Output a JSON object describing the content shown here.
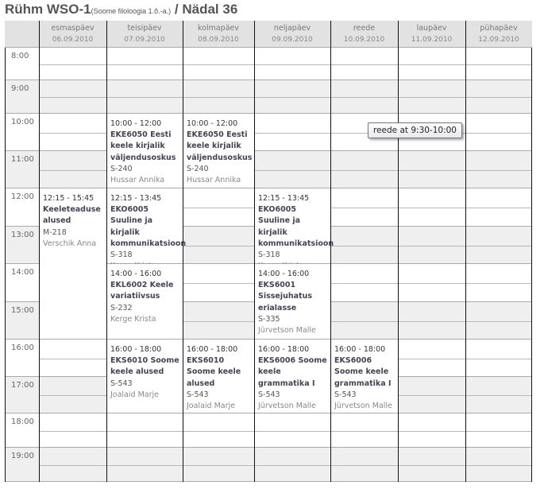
{
  "title": {
    "main": "Rühm WSO-1",
    "sub": "(Soome filoloogia 1.õ.-a.)",
    "week": " / Nädal 36"
  },
  "days": [
    {
      "name": "esmaspäev",
      "date": "06.09.2010"
    },
    {
      "name": "teisipäev",
      "date": "07.09.2010"
    },
    {
      "name": "kolmapäev",
      "date": "08.09.2010"
    },
    {
      "name": "neljapäev",
      "date": "09.09.2010"
    },
    {
      "name": "reede",
      "date": "10.09.2010"
    },
    {
      "name": "laupäev",
      "date": "11.09.2010"
    },
    {
      "name": "pühapäev",
      "date": "12.09.2010"
    }
  ],
  "hours": [
    "8:00",
    "9:00",
    "10:00",
    "11:00",
    "12:00",
    "13:00",
    "14:00",
    "15:00",
    "16:00",
    "17:00",
    "18:00",
    "19:00"
  ],
  "events": [
    {
      "day": 1,
      "time": "10:00 - 12:00",
      "course": "EKE6050 Eesti keele kirjalik väljendusoskus",
      "room": "S-240",
      "lecturer": "Hussar Annika"
    },
    {
      "day": 2,
      "time": "10:00 - 12:00",
      "course": "EKE6050 Eesti keele kirjalik väljendusoskus",
      "room": "S-240",
      "lecturer": "Hussar Annika"
    },
    {
      "day": 0,
      "time": "12:15 - 15:45",
      "course": "Keeleteaduse alused",
      "room": "M-218",
      "lecturer": "Verschik Anna"
    },
    {
      "day": 1,
      "time": "12:15 - 13:45",
      "course": "EKO6005 Suuline ja kirjalik kommunikatsioon",
      "room": "S-318",
      "lecturer": "Kerge Krista"
    },
    {
      "day": 3,
      "time": "12:15 - 13:45",
      "course": "EKO6005 Suuline ja kirjalik kommunikatsioon",
      "room": "S-318",
      "lecturer": "Kerge Krista"
    },
    {
      "day": 1,
      "time": "14:00 - 16:00",
      "course": "EKL6002 Keele variatiivsus",
      "room": "S-232",
      "lecturer": "Kerge Krista"
    },
    {
      "day": 3,
      "time": "14:00 - 16:00",
      "course": "EKS6001 Sissejuhatus erialasse",
      "room": "S-335",
      "lecturer": "Jürvetson Malle"
    },
    {
      "day": 1,
      "time": "16:00 - 18:00",
      "course": "EKS6010 Soome keele alused",
      "room": "S-543",
      "lecturer": "Joalaid Marje"
    },
    {
      "day": 2,
      "time": "16:00 - 18:00",
      "course": "EKS6010 Soome keele alused",
      "room": "S-543",
      "lecturer": "Joalaid Marje"
    },
    {
      "day": 3,
      "time": "16:00 - 18:00",
      "course": "EKS6006 Soome keele grammatika I",
      "room": "S-543",
      "lecturer": "Jürvetson Malle"
    },
    {
      "day": 4,
      "time": "16:00 - 18:00",
      "course": "EKS6006 Soome keele grammatika I",
      "room": "S-543",
      "lecturer": "Jürvetson Malle"
    }
  ],
  "tooltip": "reede at 9:30-10:00",
  "colors": {
    "header_bg": "#e2e2e2",
    "odd_hour_bg": "#efefef",
    "event_bg": "#ffffff"
  }
}
